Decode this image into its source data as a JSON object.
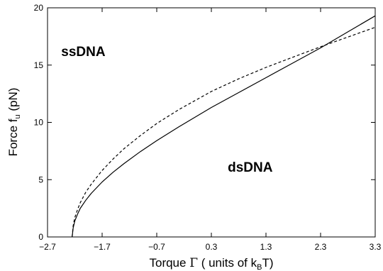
{
  "chart_data": {
    "type": "line",
    "xlabel": {
      "main": "Torque ",
      "greek": "Γ",
      "open": "  ( units of k",
      "sub": "B",
      "close": "T)"
    },
    "ylabel": {
      "main": "Force f",
      "sub": "u",
      "unit": "  (pN)"
    },
    "xlim": [
      -2.7,
      3.3
    ],
    "ylim": [
      0,
      20
    ],
    "xticks": [
      -2.7,
      -1.7,
      -0.7,
      0.3,
      1.3,
      2.3,
      3.3
    ],
    "xtick_labels": [
      "−2.7",
      "−1.7",
      "−0.7",
      "0.3",
      "1.3",
      "2.3",
      "3.3"
    ],
    "yticks": [
      0,
      5,
      10,
      15,
      20
    ],
    "ytick_labels": [
      "0",
      "5",
      "10",
      "15",
      "20"
    ],
    "grid": false,
    "annotations": [
      {
        "text": "ssDNA",
        "x": -2.45,
        "y": 15.8
      },
      {
        "text": "dsDNA",
        "x": 0.6,
        "y": 5.7
      }
    ],
    "series": [
      {
        "style": "solid",
        "color": "#000000",
        "x": [
          -2.25,
          -2.23,
          -2.2,
          -2.15,
          -2.1,
          -2.0,
          -1.9,
          -1.7,
          -1.5,
          -1.3,
          -1.0,
          -0.7,
          -0.3,
          0.3,
          0.8,
          1.3,
          1.8,
          2.3,
          2.8,
          3.3
        ],
        "y": [
          0.0,
          0.8,
          1.4,
          2.0,
          2.5,
          3.2,
          3.8,
          4.8,
          5.65,
          6.4,
          7.45,
          8.4,
          9.6,
          11.3,
          12.6,
          13.9,
          15.2,
          16.5,
          17.9,
          19.3
        ]
      },
      {
        "style": "dashed",
        "color": "#000000",
        "x": [
          -2.25,
          -2.23,
          -2.2,
          -2.15,
          -2.1,
          -2.0,
          -1.9,
          -1.7,
          -1.5,
          -1.3,
          -1.0,
          -0.7,
          -0.3,
          0.3,
          0.8,
          1.3,
          1.8,
          2.3,
          2.8,
          3.3
        ],
        "y": [
          0.0,
          1.0,
          1.7,
          2.4,
          3.0,
          3.9,
          4.6,
          5.8,
          6.8,
          7.7,
          8.85,
          9.9,
          11.1,
          12.7,
          13.8,
          14.8,
          15.7,
          16.6,
          17.45,
          18.3
        ]
      }
    ]
  }
}
